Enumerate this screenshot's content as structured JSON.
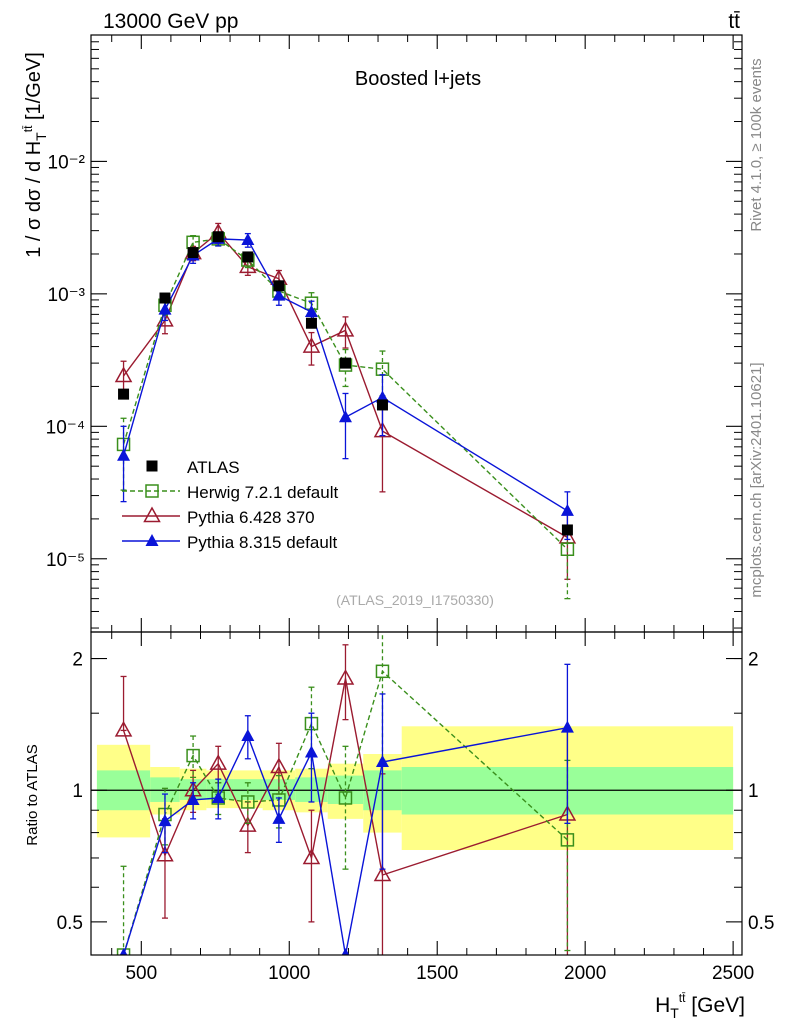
{
  "header": {
    "energy_label": "13000 GeV pp",
    "process_label": "tt̄"
  },
  "side_labels": {
    "rivet": "Rivet 4.1.0, ≥ 100k events",
    "source": "mcplots.cern.ch [arXiv:2401.10621]"
  },
  "analysis_id": "(ATLAS_2019_I1750330)",
  "colors": {
    "atlas": "#000000",
    "herwig": "#3a8f1c",
    "pythia6": "#9b1b30",
    "pythia8": "#0a14d8",
    "band_inner": "#99ff99",
    "band_outer": "#ffff88"
  },
  "chart_data": [
    {
      "name": "main",
      "type": "scatter",
      "title": "Boosted l+jets",
      "xlabel": "H_T^{tt̄} [GeV]",
      "ylabel": "1 / σ dσ / d H_T^{tt̄} [1/GeV]",
      "yscale": "log",
      "xlim": [
        330,
        2530
      ],
      "ylim": [
        2.8e-06,
        0.09
      ],
      "xticks": [
        500,
        1000,
        1500,
        2000,
        2500
      ],
      "yticks": [
        {
          "value": 1e-05,
          "label": "10⁻⁵"
        },
        {
          "value": 0.0001,
          "label": "10⁻⁴"
        },
        {
          "value": 0.001,
          "label": "10⁻³"
        },
        {
          "value": 0.01,
          "label": "10⁻²"
        }
      ],
      "legend": [
        "ATLAS",
        "Herwig 7.2.1 default",
        "Pythia 6.428 370",
        "Pythia 8.315 default"
      ],
      "series": [
        {
          "name": "ATLAS",
          "x": [
            440,
            580,
            675,
            760,
            860,
            965,
            1075,
            1190,
            1315,
            1940
          ],
          "y": [
            0.000175,
            0.00093,
            0.00205,
            0.0027,
            0.0019,
            0.00115,
            0.0006,
            0.0003,
            0.000145,
            1.65e-05
          ]
        },
        {
          "name": "Herwig 7.2.1 default",
          "x": [
            440,
            580,
            675,
            760,
            860,
            965,
            1075,
            1190,
            1315,
            1940
          ],
          "y": [
            7.3e-05,
            0.00082,
            0.00245,
            0.0026,
            0.0018,
            0.00105,
            0.00085,
            0.00029,
            0.00027,
            1.18e-05
          ],
          "err_up": [
            4.2e-05,
            0.00013,
            0.0003,
            0.0003,
            0.00022,
            0.00015,
            0.00017,
            9e-05,
            0.0001,
            5.5e-06
          ],
          "err_dn": [
            4e-05,
            0.00013,
            0.0003,
            0.0003,
            0.00022,
            0.00015,
            0.00017,
            9e-05,
            0.0001,
            6.8e-06
          ]
        },
        {
          "name": "Pythia 6.428 370",
          "x": [
            440,
            580,
            675,
            760,
            860,
            965,
            1075,
            1190,
            1315,
            1940
          ],
          "y": [
            0.00024,
            0.00063,
            0.00203,
            0.0029,
            0.0016,
            0.0013,
            0.0004,
            0.00053,
            9.2e-05,
            1.45e-05
          ],
          "err_up": [
            7e-05,
            0.00013,
            0.00025,
            0.0005,
            0.00022,
            0.0002,
            0.00011,
            0.00014,
            6e-05,
            8e-06
          ],
          "err_dn": [
            7e-05,
            0.00013,
            0.00025,
            0.0005,
            0.00022,
            0.0002,
            0.00011,
            0.00014,
            6e-05,
            7.5e-06
          ]
        },
        {
          "name": "Pythia 8.315 default",
          "x": [
            440,
            580,
            675,
            760,
            860,
            965,
            1075,
            1190,
            1315,
            1940
          ],
          "y": [
            6e-05,
            0.00076,
            0.00195,
            0.0026,
            0.00255,
            0.00097,
            0.00073,
            0.000117,
            0.000165,
            2.3e-05
          ],
          "err_up": [
            4e-05,
            0.00013,
            0.00025,
            0.0003,
            0.0003,
            0.00015,
            0.00015,
            6e-05,
            8e-05,
            9e-06
          ],
          "err_dn": [
            3.3e-05,
            0.00013,
            0.00025,
            0.0003,
            0.0003,
            0.00015,
            0.00015,
            6e-05,
            8e-05,
            9e-06
          ]
        }
      ]
    },
    {
      "name": "ratio",
      "type": "scatter",
      "xlabel": "H_T^{tt̄} [GeV]",
      "ylabel": "Ratio to ATLAS",
      "yscale": "log",
      "xlim": [
        330,
        2530
      ],
      "ylim": [
        0.42,
        2.3
      ],
      "xticks": [
        500,
        1000,
        1500,
        2000,
        2500
      ],
      "yticks": [
        {
          "value": 0.5,
          "label": "0.5"
        },
        {
          "value": 1,
          "label": "1"
        },
        {
          "value": 2,
          "label": "2"
        }
      ],
      "band": {
        "edges": [
          350,
          530,
          630,
          720,
          810,
          910,
          1020,
          1130,
          1250,
          1380,
          2500
        ],
        "inner_lo": [
          0.9,
          0.94,
          0.95,
          0.95,
          0.95,
          0.95,
          0.94,
          0.93,
          0.9,
          0.88
        ],
        "inner_hi": [
          1.11,
          1.07,
          1.06,
          1.06,
          1.06,
          1.06,
          1.07,
          1.08,
          1.11,
          1.13
        ],
        "outer_lo": [
          0.78,
          0.88,
          0.9,
          0.91,
          0.91,
          0.9,
          0.89,
          0.86,
          0.8,
          0.73
        ],
        "outer_hi": [
          1.27,
          1.13,
          1.12,
          1.11,
          1.11,
          1.11,
          1.12,
          1.15,
          1.21,
          1.4
        ]
      },
      "series": [
        {
          "name": "Herwig 7.2.1 default",
          "x": [
            440,
            580,
            675,
            760,
            860,
            965,
            1075,
            1190,
            1315,
            1940
          ],
          "y": [
            0.42,
            0.88,
            1.2,
            0.96,
            0.94,
            0.95,
            1.42,
            0.96,
            1.87,
            0.77
          ],
          "err_up": [
            0.25,
            0.13,
            0.13,
            0.08,
            0.1,
            0.13,
            0.3,
            0.3,
            0.7,
            0.4
          ],
          "err_dn": [
            0.0,
            0.13,
            0.13,
            0.08,
            0.1,
            0.13,
            0.3,
            0.3,
            0.7,
            0.34
          ]
        },
        {
          "name": "Pythia 6.428 370",
          "x": [
            440,
            580,
            675,
            760,
            860,
            965,
            1075,
            1190,
            1315,
            1940
          ],
          "y": [
            1.37,
            0.71,
            1.0,
            1.15,
            0.83,
            1.13,
            0.7,
            1.8,
            0.64,
            0.88
          ],
          "err_up": [
            0.45,
            0.15,
            0.11,
            0.11,
            0.11,
            0.15,
            0.2,
            0.35,
            0.45,
            0.5
          ],
          "err_dn": [
            0.0,
            0.2,
            0.11,
            0.11,
            0.11,
            0.15,
            0.2,
            0.35,
            0.4,
            0.5
          ]
        },
        {
          "name": "Pythia 8.315 default",
          "x": [
            440,
            580,
            675,
            760,
            860,
            965,
            1075,
            1190,
            1315,
            1940
          ],
          "y": [
            0.42,
            0.85,
            0.95,
            0.96,
            1.33,
            0.86,
            1.22,
            0.42,
            1.16,
            1.39
          ],
          "err_up": [
            0.0,
            0.13,
            0.09,
            0.1,
            0.15,
            0.1,
            0.28,
            0.0,
            0.5,
            0.55
          ],
          "err_dn": [
            0.0,
            0.13,
            0.09,
            0.1,
            0.15,
            0.1,
            0.28,
            0.0,
            0.5,
            0.55
          ]
        }
      ]
    }
  ]
}
